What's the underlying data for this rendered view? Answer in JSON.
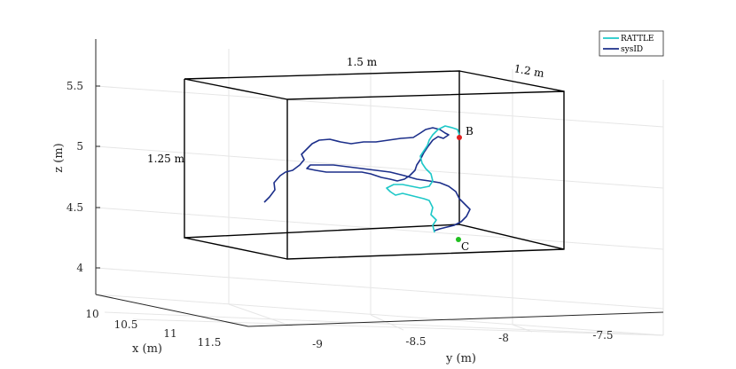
{
  "chart_data": {
    "type": "line3d",
    "xlabel": "x (m)",
    "ylabel": "y (m)",
    "zlabel": "z (m)",
    "xticks": [
      "10",
      "10.5",
      "11",
      "11.5"
    ],
    "yticks": [
      "-9",
      "-8.5",
      "-8",
      "-7.5"
    ],
    "zticks": [
      "4",
      "4.5",
      "5",
      "5.5"
    ],
    "grid": true,
    "legend": {
      "placement": "top-right",
      "entries": [
        {
          "name": "RATTLE",
          "color": "#1ec8c8"
        },
        {
          "name": "sysID",
          "color": "#1c2f8a"
        }
      ]
    },
    "box_dimensions": {
      "length": "1.5 m",
      "depth": "1.2 m",
      "height": "1.25 m"
    },
    "points": [
      {
        "label": "B",
        "color": "#e02020"
      },
      {
        "label": "C",
        "color": "#20c020"
      }
    ],
    "series": [
      {
        "name": "RATTLE",
        "color": "#1ec8c8"
      },
      {
        "name": "sysID",
        "color": "#1c2f8a"
      }
    ]
  }
}
